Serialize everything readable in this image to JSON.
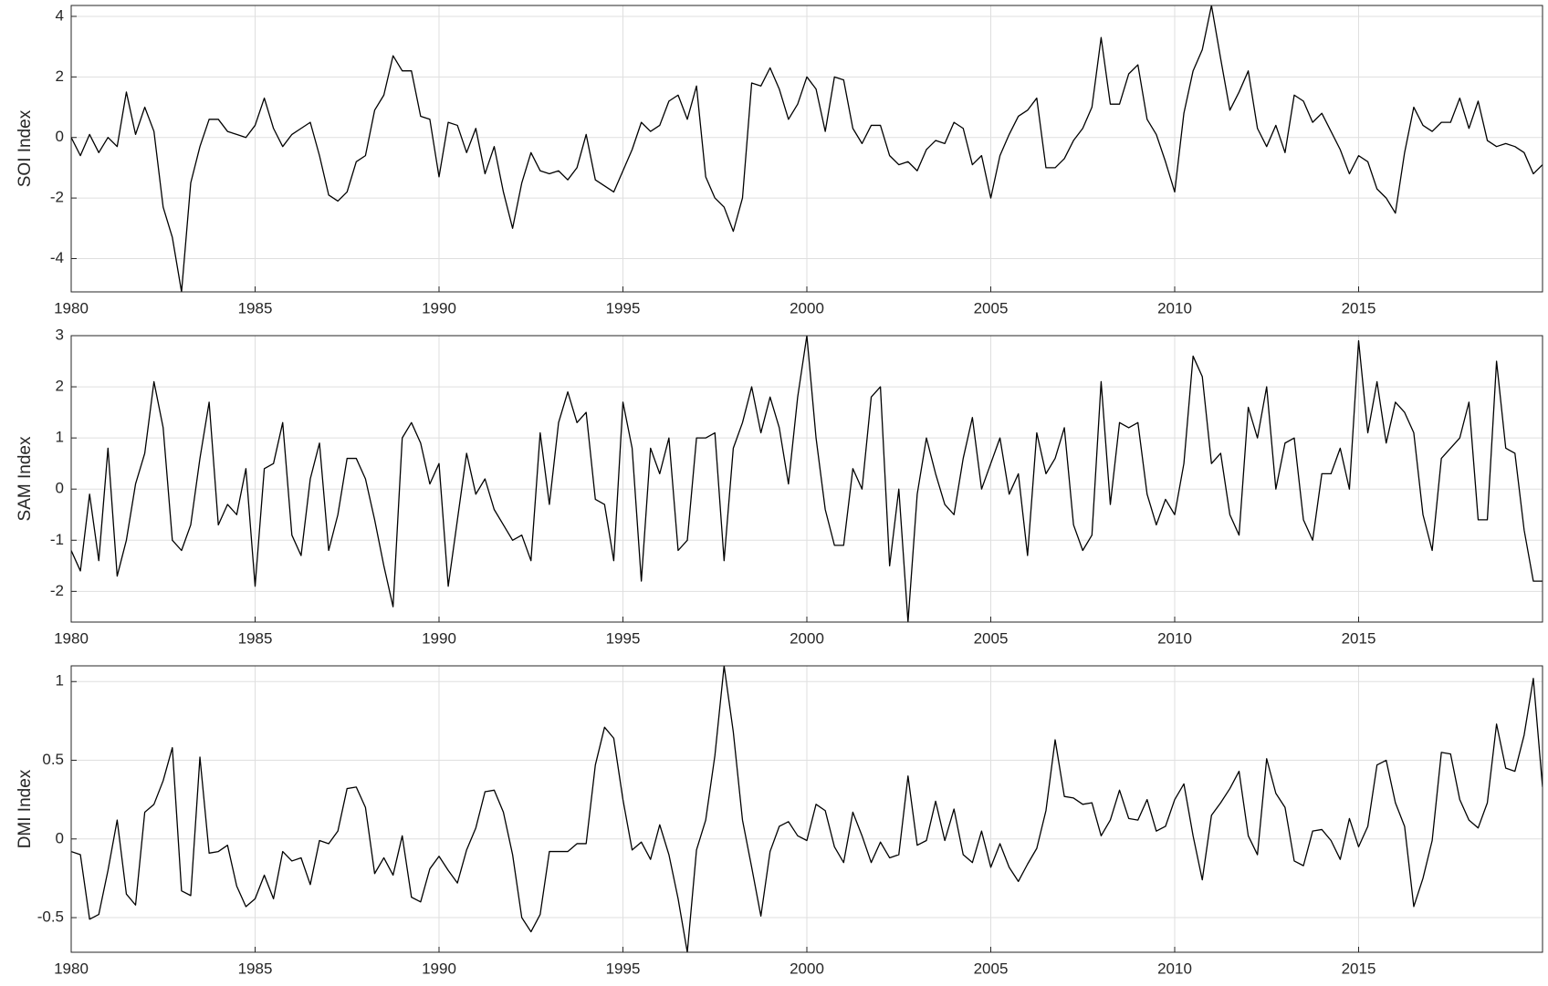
{
  "chart_data": [
    {
      "type": "line",
      "ylabel": "SOI Index",
      "grid": true,
      "color": "#000000",
      "xlim": [
        1980,
        2020
      ],
      "xticks": [
        1980,
        1985,
        1990,
        1995,
        2000,
        2005,
        2010,
        2015
      ],
      "ylim": [
        -5.1,
        4.36
      ],
      "yticks": [
        -4,
        -2,
        0,
        2,
        4
      ],
      "x": [
        1980,
        1980.25,
        1980.5,
        1980.75,
        1981,
        1981.25,
        1981.5,
        1981.75,
        1982,
        1982.25,
        1982.5,
        1982.75,
        1983,
        1983.25,
        1983.5,
        1983.75,
        1984,
        1984.25,
        1984.5,
        1984.75,
        1985,
        1985.25,
        1985.5,
        1985.75,
        1986,
        1986.25,
        1986.5,
        1986.75,
        1987,
        1987.25,
        1987.5,
        1987.75,
        1988,
        1988.25,
        1988.5,
        1988.75,
        1989,
        1989.25,
        1989.5,
        1989.75,
        1990,
        1990.25,
        1990.5,
        1990.75,
        1991,
        1991.25,
        1991.5,
        1991.75,
        1992,
        1992.25,
        1992.5,
        1992.75,
        1993,
        1993.25,
        1993.5,
        1993.75,
        1994,
        1994.25,
        1994.5,
        1994.75,
        1995,
        1995.25,
        1995.5,
        1995.75,
        1996,
        1996.25,
        1996.5,
        1996.75,
        1997,
        1997.25,
        1997.5,
        1997.75,
        1998,
        1998.25,
        1998.5,
        1998.75,
        1999,
        1999.25,
        1999.5,
        1999.75,
        2000,
        2000.25,
        2000.5,
        2000.75,
        2001,
        2001.25,
        2001.5,
        2001.75,
        2002,
        2002.25,
        2002.5,
        2002.75,
        2003,
        2003.25,
        2003.5,
        2003.75,
        2004,
        2004.25,
        2004.5,
        2004.75,
        2005,
        2005.25,
        2005.5,
        2005.75,
        2006,
        2006.25,
        2006.5,
        2006.75,
        2007,
        2007.25,
        2007.5,
        2007.75,
        2008,
        2008.25,
        2008.5,
        2008.75,
        2009,
        2009.25,
        2009.5,
        2009.75,
        2010,
        2010.25,
        2010.5,
        2010.75,
        2011,
        2011.25,
        2011.5,
        2011.75,
        2012,
        2012.25,
        2012.5,
        2012.75,
        2013,
        2013.25,
        2013.5,
        2013.75,
        2014,
        2014.25,
        2014.5,
        2014.75,
        2015,
        2015.25,
        2015.5,
        2015.75,
        2016,
        2016.25,
        2016.5,
        2016.75,
        2017,
        2017.25,
        2017.5,
        2017.75,
        2018,
        2018.25,
        2018.5,
        2018.75,
        2019,
        2019.25,
        2019.5,
        2019.75,
        2020
      ],
      "values": [
        0.0,
        -0.6,
        0.1,
        -0.5,
        0.0,
        -0.3,
        1.5,
        0.1,
        1.0,
        0.2,
        -2.3,
        -3.3,
        -5.1,
        -1.5,
        -0.3,
        0.6,
        0.6,
        0.2,
        0.1,
        0.0,
        0.4,
        1.3,
        0.3,
        -0.3,
        0.1,
        0.3,
        0.5,
        -0.6,
        -1.9,
        -2.1,
        -1.8,
        -0.8,
        -0.6,
        0.9,
        1.4,
        2.7,
        2.2,
        2.2,
        0.7,
        0.6,
        -1.3,
        0.5,
        0.4,
        -0.5,
        0.3,
        -1.2,
        -0.3,
        -1.8,
        -3.0,
        -1.5,
        -0.5,
        -1.1,
        -1.2,
        -1.1,
        -1.4,
        -1.0,
        0.1,
        -1.4,
        -1.6,
        -1.8,
        -1.1,
        -0.4,
        0.5,
        0.2,
        0.4,
        1.2,
        1.4,
        0.6,
        1.7,
        -1.3,
        -2.0,
        -2.3,
        -3.1,
        -2.0,
        1.8,
        1.7,
        2.3,
        1.6,
        0.6,
        1.1,
        2.0,
        1.6,
        0.2,
        2.0,
        1.9,
        0.3,
        -0.2,
        0.4,
        0.4,
        -0.6,
        -0.9,
        -0.8,
        -1.1,
        -0.4,
        -0.1,
        -0.2,
        0.5,
        0.3,
        -0.9,
        -0.6,
        -2.0,
        -0.6,
        0.1,
        0.7,
        0.9,
        1.3,
        -1.0,
        -1.0,
        -0.7,
        -0.1,
        0.3,
        1.0,
        3.3,
        1.1,
        1.1,
        2.1,
        2.4,
        0.6,
        0.1,
        -0.8,
        -1.8,
        0.8,
        2.2,
        2.9,
        4.36,
        2.6,
        0.9,
        1.5,
        2.2,
        0.3,
        -0.3,
        0.4,
        -0.5,
        1.4,
        1.2,
        0.5,
        0.8,
        0.2,
        -0.4,
        -1.2,
        -0.6,
        -0.8,
        -1.7,
        -2.0,
        -2.5,
        -0.5,
        1.0,
        0.4,
        0.2,
        0.5,
        0.5,
        1.3,
        0.3,
        1.2,
        -0.1,
        -0.3,
        -0.2,
        -0.3,
        -0.5,
        -1.2,
        -0.9
      ]
    },
    {
      "type": "line",
      "ylabel": "SAM Index",
      "grid": true,
      "color": "#000000",
      "xlim": [
        1980,
        2020
      ],
      "xticks": [
        1980,
        1985,
        1990,
        1995,
        2000,
        2005,
        2010,
        2015
      ],
      "ylim": [
        -2.6,
        3.0
      ],
      "yticks": [
        -2,
        -1,
        0,
        1,
        2,
        3
      ],
      "x": [
        1980,
        1980.25,
        1980.5,
        1980.75,
        1981,
        1981.25,
        1981.5,
        1981.75,
        1982,
        1982.25,
        1982.5,
        1982.75,
        1983,
        1983.25,
        1983.5,
        1983.75,
        1984,
        1984.25,
        1984.5,
        1984.75,
        1985,
        1985.25,
        1985.5,
        1985.75,
        1986,
        1986.25,
        1986.5,
        1986.75,
        1987,
        1987.25,
        1987.5,
        1987.75,
        1988,
        1988.25,
        1988.5,
        1988.75,
        1989,
        1989.25,
        1989.5,
        1989.75,
        1990,
        1990.25,
        1990.5,
        1990.75,
        1991,
        1991.25,
        1991.5,
        1991.75,
        1992,
        1992.25,
        1992.5,
        1992.75,
        1993,
        1993.25,
        1993.5,
        1993.75,
        1994,
        1994.25,
        1994.5,
        1994.75,
        1995,
        1995.25,
        1995.5,
        1995.75,
        1996,
        1996.25,
        1996.5,
        1996.75,
        1997,
        1997.25,
        1997.5,
        1997.75,
        1998,
        1998.25,
        1998.5,
        1998.75,
        1999,
        1999.25,
        1999.5,
        1999.75,
        2000,
        2000.25,
        2000.5,
        2000.75,
        2001,
        2001.25,
        2001.5,
        2001.75,
        2002,
        2002.25,
        2002.5,
        2002.75,
        2003,
        2003.25,
        2003.5,
        2003.75,
        2004,
        2004.25,
        2004.5,
        2004.75,
        2005,
        2005.25,
        2005.5,
        2005.75,
        2006,
        2006.25,
        2006.5,
        2006.75,
        2007,
        2007.25,
        2007.5,
        2007.75,
        2008,
        2008.25,
        2008.5,
        2008.75,
        2009,
        2009.25,
        2009.5,
        2009.75,
        2010,
        2010.25,
        2010.5,
        2010.75,
        2011,
        2011.25,
        2011.5,
        2011.75,
        2012,
        2012.25,
        2012.5,
        2012.75,
        2013,
        2013.25,
        2013.5,
        2013.75,
        2014,
        2014.25,
        2014.5,
        2014.75,
        2015,
        2015.25,
        2015.5,
        2015.75,
        2016,
        2016.25,
        2016.5,
        2016.75,
        2017,
        2017.25,
        2017.5,
        2017.75,
        2018,
        2018.25,
        2018.5,
        2018.75,
        2019,
        2019.25,
        2019.5,
        2019.75,
        2020
      ],
      "values": [
        -1.2,
        -1.6,
        -0.1,
        -1.4,
        0.8,
        -1.7,
        -1.0,
        0.1,
        0.7,
        2.1,
        1.2,
        -1.0,
        -1.2,
        -0.7,
        0.6,
        1.7,
        -0.7,
        -0.3,
        -0.5,
        0.4,
        -1.9,
        0.4,
        0.5,
        1.3,
        -0.9,
        -1.3,
        0.2,
        0.9,
        -1.2,
        -0.5,
        0.6,
        0.6,
        0.2,
        -0.6,
        -1.5,
        -2.3,
        1.0,
        1.3,
        0.9,
        0.1,
        0.5,
        -1.9,
        -0.6,
        0.7,
        -0.1,
        0.2,
        -0.4,
        -0.7,
        -1.0,
        -0.9,
        -1.4,
        1.1,
        -0.3,
        1.3,
        1.9,
        1.3,
        1.5,
        -0.2,
        -0.3,
        -1.4,
        1.7,
        0.8,
        -1.8,
        0.8,
        0.3,
        1.0,
        -1.2,
        -1.0,
        1.0,
        1.0,
        1.1,
        -1.4,
        0.8,
        1.3,
        2.0,
        1.1,
        1.8,
        1.2,
        0.1,
        1.8,
        3.0,
        1.0,
        -0.4,
        -1.1,
        -1.1,
        0.4,
        0.0,
        1.8,
        2.0,
        -1.5,
        0.0,
        -2.6,
        -0.1,
        1.0,
        0.3,
        -0.3,
        -0.5,
        0.6,
        1.4,
        0.0,
        0.5,
        1.0,
        -0.1,
        0.3,
        -1.3,
        1.1,
        0.3,
        0.6,
        1.2,
        -0.7,
        -1.2,
        -0.9,
        2.1,
        -0.3,
        1.3,
        1.2,
        1.3,
        -0.1,
        -0.7,
        -0.2,
        -0.5,
        0.5,
        2.6,
        2.2,
        0.5,
        0.7,
        -0.5,
        -0.9,
        1.6,
        1.0,
        2.0,
        0.0,
        0.9,
        1.0,
        -0.6,
        -1.0,
        0.3,
        0.3,
        0.8,
        0.0,
        2.9,
        1.1,
        2.1,
        0.9,
        1.7,
        1.5,
        1.1,
        -0.5,
        -1.2,
        0.6,
        0.8,
        1.0,
        1.7,
        -0.6,
        -0.6,
        2.5,
        0.8,
        0.7,
        -0.8,
        -1.8,
        -1.8
      ]
    },
    {
      "type": "line",
      "ylabel": "DMI Index",
      "grid": true,
      "color": "#000000",
      "xlim": [
        1980,
        2020
      ],
      "xticks": [
        1980,
        1985,
        1990,
        1995,
        2000,
        2005,
        2010,
        2015
      ],
      "ylim": [
        -0.72,
        1.1
      ],
      "yticks": [
        -0.5,
        0,
        0.5,
        1
      ],
      "x": [
        1980,
        1980.25,
        1980.5,
        1980.75,
        1981,
        1981.25,
        1981.5,
        1981.75,
        1982,
        1982.25,
        1982.5,
        1982.75,
        1983,
        1983.25,
        1983.5,
        1983.75,
        1984,
        1984.25,
        1984.5,
        1984.75,
        1985,
        1985.25,
        1985.5,
        1985.75,
        1986,
        1986.25,
        1986.5,
        1986.75,
        1987,
        1987.25,
        1987.5,
        1987.75,
        1988,
        1988.25,
        1988.5,
        1988.75,
        1989,
        1989.25,
        1989.5,
        1989.75,
        1990,
        1990.25,
        1990.5,
        1990.75,
        1991,
        1991.25,
        1991.5,
        1991.75,
        1992,
        1992.25,
        1992.5,
        1992.75,
        1993,
        1993.25,
        1993.5,
        1993.75,
        1994,
        1994.25,
        1994.5,
        1994.75,
        1995,
        1995.25,
        1995.5,
        1995.75,
        1996,
        1996.25,
        1996.5,
        1996.75,
        1997,
        1997.25,
        1997.5,
        1997.75,
        1998,
        1998.25,
        1998.5,
        1998.75,
        1999,
        1999.25,
        1999.5,
        1999.75,
        2000,
        2000.25,
        2000.5,
        2000.75,
        2001,
        2001.25,
        2001.5,
        2001.75,
        2002,
        2002.25,
        2002.5,
        2002.75,
        2003,
        2003.25,
        2003.5,
        2003.75,
        2004,
        2004.25,
        2004.5,
        2004.75,
        2005,
        2005.25,
        2005.5,
        2005.75,
        2006,
        2006.25,
        2006.5,
        2006.75,
        2007,
        2007.25,
        2007.5,
        2007.75,
        2008,
        2008.25,
        2008.5,
        2008.75,
        2009,
        2009.25,
        2009.5,
        2009.75,
        2010,
        2010.25,
        2010.5,
        2010.75,
        2011,
        2011.25,
        2011.5,
        2011.75,
        2012,
        2012.25,
        2012.5,
        2012.75,
        2013,
        2013.25,
        2013.5,
        2013.75,
        2014,
        2014.25,
        2014.5,
        2014.75,
        2015,
        2015.25,
        2015.5,
        2015.75,
        2016,
        2016.25,
        2016.5,
        2016.75,
        2017,
        2017.25,
        2017.5,
        2017.75,
        2018,
        2018.25,
        2018.5,
        2018.75,
        2019,
        2019.25,
        2019.5,
        2019.75,
        2020
      ],
      "values": [
        -0.08,
        -0.1,
        -0.51,
        -0.48,
        -0.2,
        0.12,
        -0.35,
        -0.42,
        0.17,
        0.22,
        0.37,
        0.58,
        -0.33,
        -0.36,
        0.52,
        -0.09,
        -0.08,
        -0.04,
        -0.3,
        -0.43,
        -0.38,
        -0.23,
        -0.38,
        -0.08,
        -0.14,
        -0.12,
        -0.29,
        -0.01,
        -0.03,
        0.05,
        0.32,
        0.33,
        0.2,
        -0.22,
        -0.12,
        -0.23,
        0.02,
        -0.37,
        -0.4,
        -0.19,
        -0.11,
        -0.2,
        -0.28,
        -0.07,
        0.07,
        0.3,
        0.31,
        0.17,
        -0.1,
        -0.5,
        -0.59,
        -0.48,
        -0.08,
        -0.08,
        -0.08,
        -0.03,
        -0.03,
        0.47,
        0.71,
        0.64,
        0.25,
        -0.07,
        -0.02,
        -0.13,
        0.09,
        -0.1,
        -0.38,
        -0.72,
        -0.07,
        0.12,
        0.53,
        1.1,
        0.68,
        0.12,
        -0.18,
        -0.49,
        -0.08,
        0.08,
        0.11,
        0.02,
        -0.01,
        0.22,
        0.18,
        -0.05,
        -0.15,
        0.17,
        0.02,
        -0.15,
        -0.02,
        -0.12,
        -0.1,
        0.4,
        -0.04,
        -0.01,
        0.24,
        -0.01,
        0.19,
        -0.1,
        -0.15,
        0.05,
        -0.18,
        -0.03,
        -0.18,
        -0.27,
        -0.16,
        -0.06,
        0.18,
        0.63,
        0.27,
        0.26,
        0.22,
        0.23,
        0.02,
        0.12,
        0.31,
        0.13,
        0.12,
        0.25,
        0.05,
        0.08,
        0.25,
        0.35,
        0.02,
        -0.26,
        0.15,
        0.23,
        0.32,
        0.43,
        0.02,
        -0.1,
        0.51,
        0.29,
        0.2,
        -0.14,
        -0.17,
        0.05,
        0.06,
        -0.01,
        -0.13,
        0.13,
        -0.05,
        0.08,
        0.47,
        0.5,
        0.23,
        0.08,
        -0.43,
        -0.25,
        -0.01,
        0.55,
        0.54,
        0.25,
        0.12,
        0.07,
        0.23,
        0.73,
        0.45,
        0.43,
        0.66,
        1.02,
        0.33
      ]
    }
  ]
}
